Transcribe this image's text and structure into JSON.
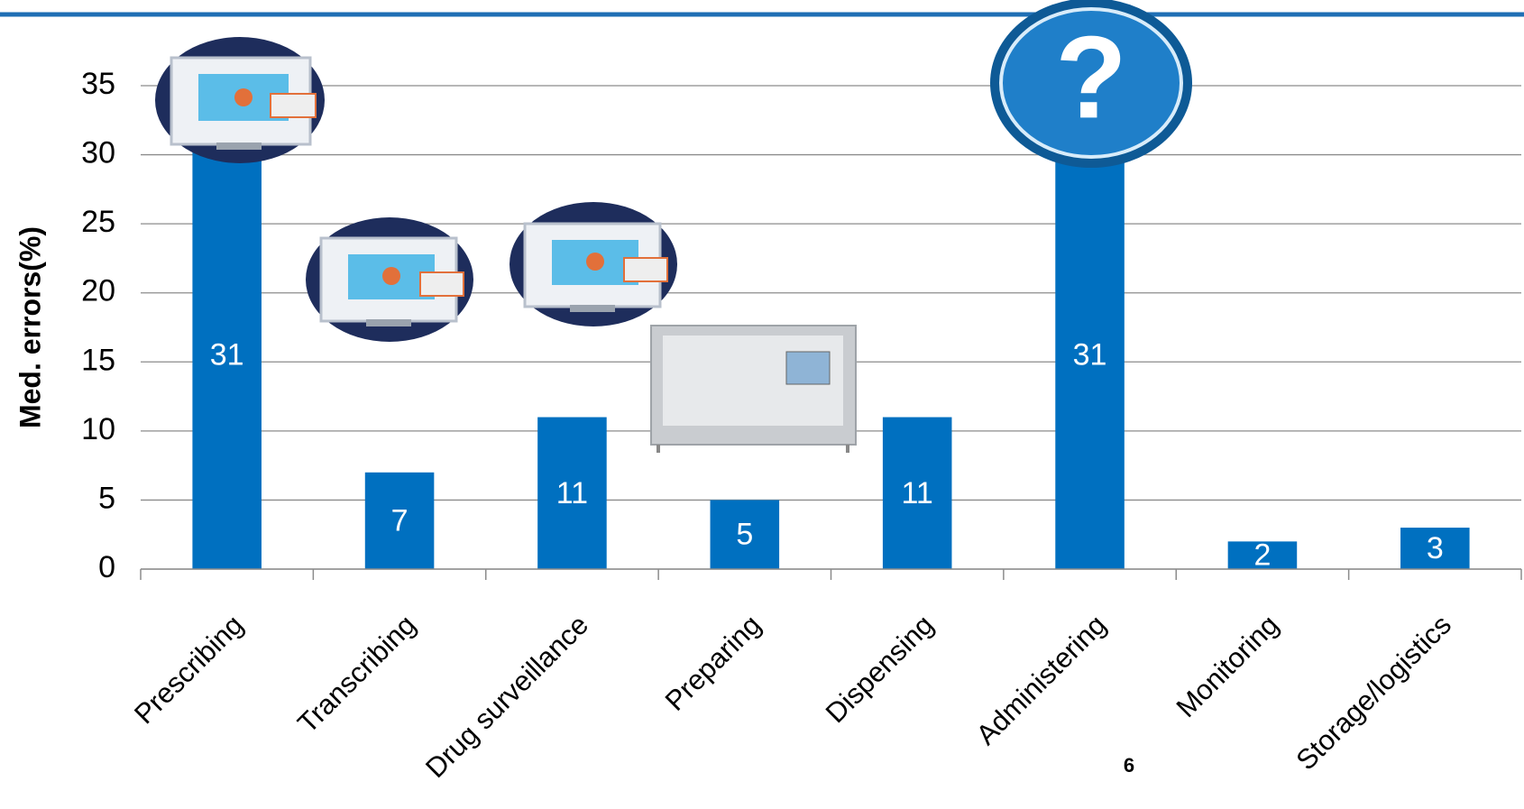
{
  "chart_data": {
    "type": "bar",
    "y_label": "Med. errors(%)",
    "categories": [
      "Prescribing",
      "Transcribing",
      "Drug surveillance",
      "Preparing",
      "Dispensing",
      "Administering",
      "Monitoring",
      "Storage/logistics"
    ],
    "values": [
      31,
      7,
      11,
      5,
      11,
      31,
      2,
      3
    ],
    "color": "#0070c0",
    "ylim": [
      0,
      35
    ],
    "yticks": [
      0,
      5,
      10,
      15,
      20,
      25,
      30,
      35
    ],
    "grid": true
  },
  "page_number": "6"
}
